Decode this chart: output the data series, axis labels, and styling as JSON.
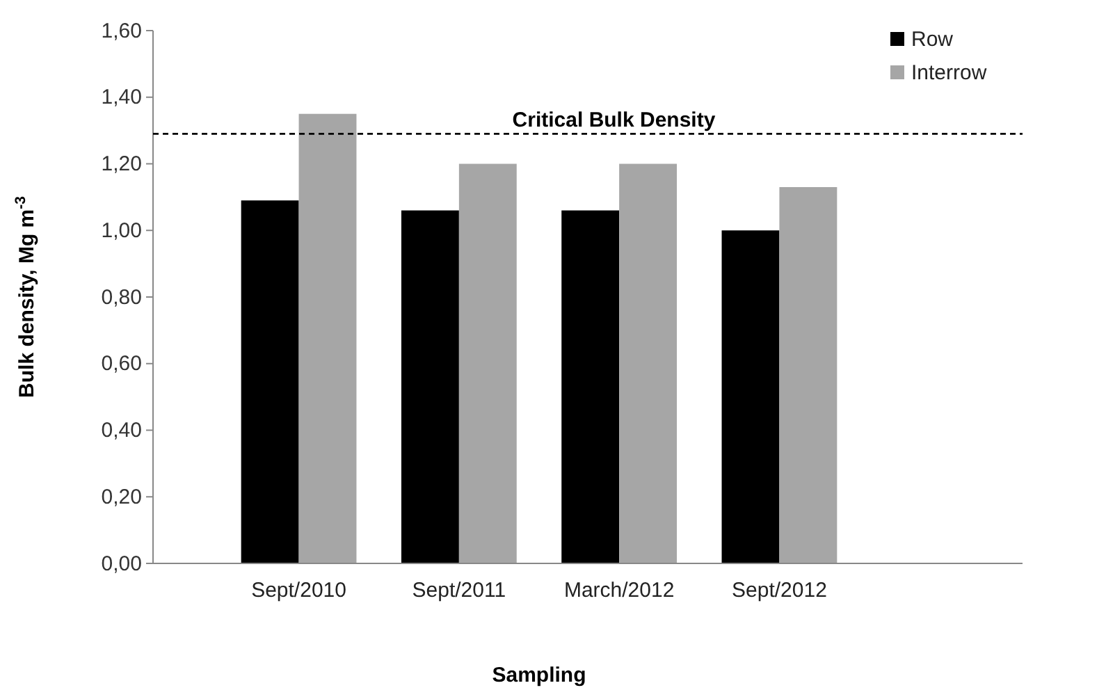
{
  "chart_data": {
    "type": "bar",
    "xlabel": "Sampling",
    "ylabel": "Bulk density, Mg m$^{-3}$",
    "categories": [
      "Sept/2010",
      "Sept/2011",
      "March/2012",
      "Sept/2012"
    ],
    "series": [
      {
        "name": "Row",
        "color": "#000000",
        "values": [
          1.09,
          1.06,
          1.06,
          1.0
        ]
      },
      {
        "name": "Interrow",
        "color": "#a6a6a6",
        "values": [
          1.35,
          1.2,
          1.2,
          1.13
        ]
      }
    ],
    "ylim": [
      0,
      1.6
    ],
    "yticks": [
      {
        "value": 0,
        "label": "0,00"
      },
      {
        "value": 0.2,
        "label": "0,20"
      },
      {
        "value": 0.4,
        "label": "0,40"
      },
      {
        "value": 0.6,
        "label": "0,60"
      },
      {
        "value": 0.8,
        "label": "0,80"
      },
      {
        "value": 1.0,
        "label": "1,00"
      },
      {
        "value": 1.2,
        "label": "1,20"
      },
      {
        "value": 1.4,
        "label": "1,40"
      },
      {
        "value": 1.6,
        "label": "1,60"
      }
    ],
    "ref_lines": [
      {
        "axis": "y",
        "value": 1.29,
        "label": "Critical Bulk Density",
        "color": "#000000",
        "line_style": "dashed"
      }
    ],
    "legend": "top right",
    "grid": false
  }
}
